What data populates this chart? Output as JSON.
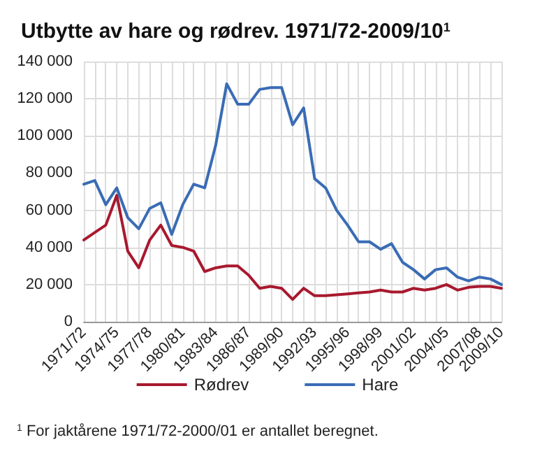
{
  "chart_data": {
    "type": "line",
    "title": "Utbytte av hare og rødrev. 1971/72-2009/10$^{1}$",
    "categories": [
      "1971/72",
      null,
      null,
      "1974/75",
      null,
      null,
      "1977/78",
      null,
      null,
      "1980/81",
      null,
      null,
      "1983/84",
      null,
      null,
      "1986/87",
      null,
      null,
      "1989/90",
      null,
      null,
      "1992/93",
      null,
      null,
      "1995/96",
      null,
      null,
      "1998/99",
      null,
      null,
      "2001/02",
      null,
      null,
      "2004/05",
      null,
      null,
      "2007/08",
      null,
      "2009/10"
    ],
    "series": [
      {
        "name": "Rødrev",
        "color": "#a8192e",
        "values": [
          44000,
          48000,
          52000,
          68000,
          38000,
          29000,
          44000,
          52000,
          41000,
          40000,
          38000,
          27000,
          29000,
          30000,
          30000,
          25000,
          18000,
          19000,
          18000,
          12000,
          18000,
          14000,
          14000,
          14500,
          15000,
          15500,
          16000,
          17000,
          16000,
          16000,
          18000,
          17000,
          18000,
          20000,
          17000,
          18500,
          19000,
          19000,
          18000
        ]
      },
      {
        "name": "Hare",
        "color": "#3a6cb5",
        "values": [
          74000,
          76000,
          63000,
          72000,
          56000,
          50000,
          61000,
          64000,
          47000,
          63000,
          74000,
          72000,
          95000,
          128000,
          117000,
          117000,
          125000,
          126000,
          126000,
          106000,
          115000,
          77000,
          72000,
          60000,
          52000,
          43000,
          43000,
          39000,
          42000,
          32000,
          28000,
          23000,
          28000,
          29000,
          24000,
          22000,
          24000,
          23000,
          20000
        ]
      }
    ],
    "ylim": [
      0,
      140000
    ],
    "yticks": [
      0,
      {
        "value": 20000,
        "label": "20 000"
      },
      {
        "value": 40000,
        "label": "40 000"
      },
      {
        "value": 60000,
        "label": "60 000"
      },
      {
        "value": 80000,
        "label": "80 000"
      },
      {
        "value": 100000,
        "label": "100 000"
      },
      {
        "value": 120000,
        "label": "120 000"
      },
      {
        "value": 140000,
        "label": "140 000"
      }
    ],
    "grid": true,
    "legend": "bottom",
    "marker": "none",
    "line_style": "solid",
    "annotations": [
      "$^{1}$ For jaktårene 1971/72-2000/01 er antallet beregnet."
    ]
  }
}
